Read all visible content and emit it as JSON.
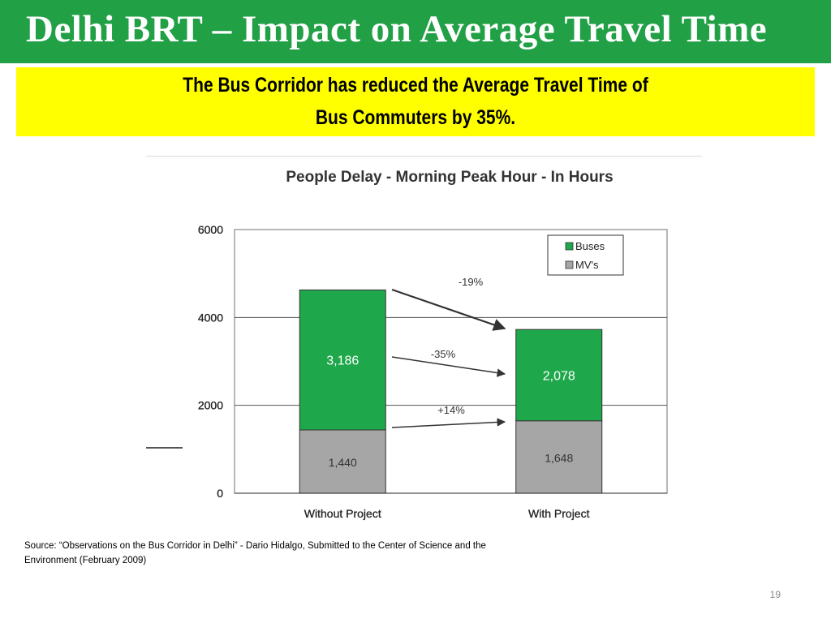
{
  "slide": {
    "title": "Delhi BRT – Impact on Average Travel Time",
    "callout_lines": [
      "The Bus Corridor has reduced the Average Travel Time of",
      "Bus Commuters by 35%."
    ],
    "source_lines": [
      "Source: “Observations on the Bus Corridor in Delhi” - Dario Hidalgo, Submitted to the Center of Science and the",
      "Environment (February 2009)"
    ],
    "page_number": "19"
  },
  "colors": {
    "header_green": "#21a046",
    "callout_yellow": "#ffff00",
    "title_text": "#ffffff"
  },
  "chart_data": {
    "type": "bar",
    "stacked": true,
    "title": "People Delay - Morning Peak Hour - In Hours",
    "categories": [
      "Without Project",
      "With Project"
    ],
    "series": [
      {
        "name": "MV's",
        "values": [
          1440,
          1648
        ],
        "labels": [
          "1,440",
          "1,648"
        ],
        "color": "#a6a6a6",
        "label_color": "#333333"
      },
      {
        "name": "Buses",
        "values": [
          3186,
          2078
        ],
        "labels": [
          "3,186",
          "2,078"
        ],
        "color": "#1fa84b",
        "label_color": "#ffffff"
      }
    ],
    "ylim": [
      0,
      6000
    ],
    "yticks": [
      0,
      2000,
      4000,
      6000
    ],
    "ytick_labels": [
      "0",
      "2000",
      "4000",
      "6000"
    ],
    "annotations": [
      "-19%",
      "-35%",
      "+14%"
    ],
    "legend": {
      "placement": "top-right"
    },
    "grid": true
  }
}
